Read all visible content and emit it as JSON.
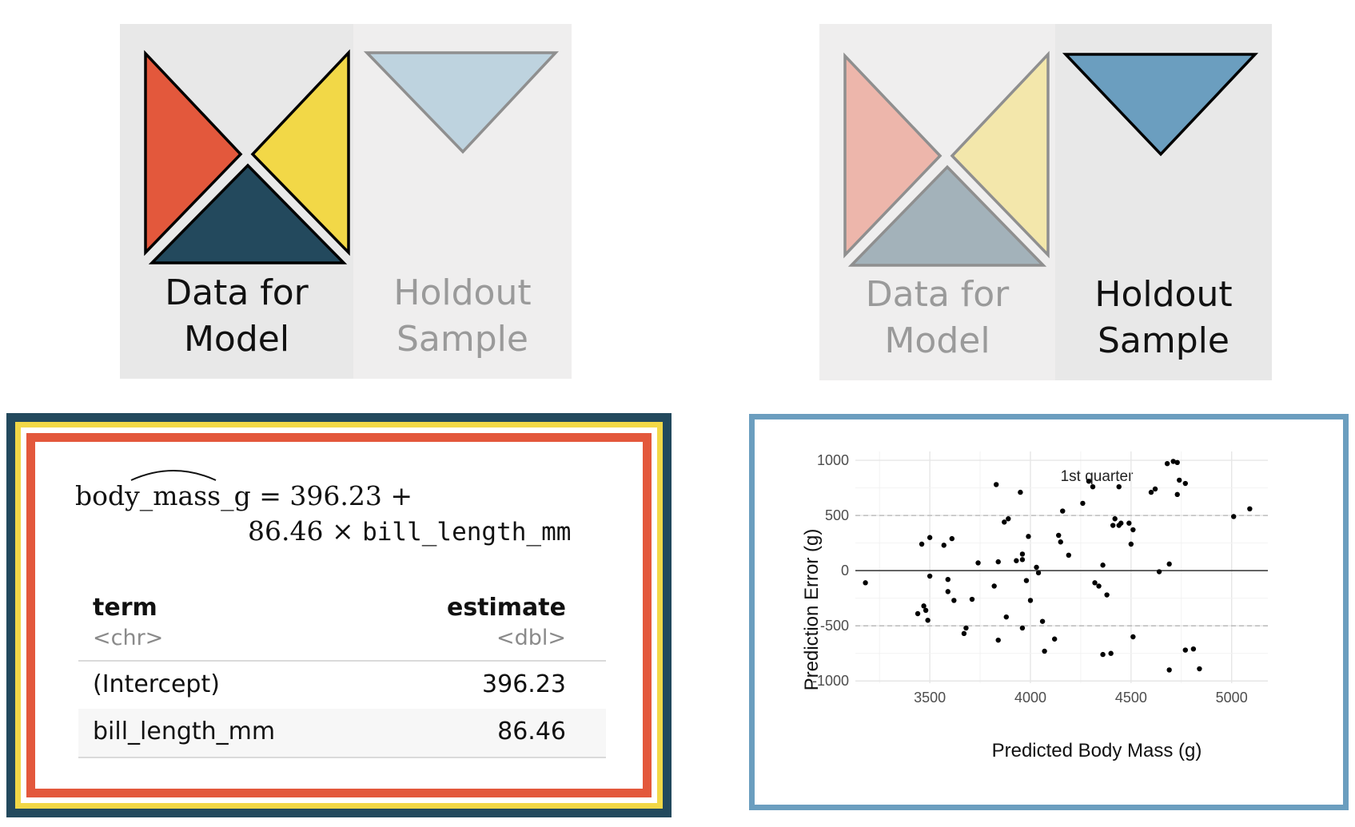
{
  "panels": {
    "left": {
      "model_label": [
        "Data for",
        "Model"
      ],
      "holdout_label": [
        "Holdout",
        "Sample"
      ]
    },
    "right": {
      "model_label": [
        "Data for",
        "Model"
      ],
      "holdout_label": [
        "Holdout",
        "Sample"
      ]
    }
  },
  "colors": {
    "red": "#e3583c",
    "yellow": "#f2d847",
    "navy": "#23495d",
    "light_blue": "#bed3df",
    "blue": "#6b9ebf",
    "faded_red": "#edb6ab",
    "faded_yellow": "#f3e7ab",
    "faded_navy": "#a3b2ba"
  },
  "model": {
    "equation_lhs": "body_mass_g",
    "equation_eq": " = 396.23 +",
    "equation_coef": "86.46 × ",
    "equation_var": "bill_length_mm",
    "table": {
      "headers": [
        "term",
        "estimate"
      ],
      "types": [
        "<chr>",
        "<dbl>"
      ],
      "rows": [
        [
          "(Intercept)",
          "396.23"
        ],
        [
          "bill_length_mm",
          "86.46"
        ]
      ]
    }
  },
  "chart_data": {
    "type": "scatter",
    "title": "1st quarter",
    "xlabel": "Predicted Body Mass (g)",
    "ylabel": "Prediction Error (g)",
    "xlim": [
      3130,
      5180
    ],
    "ylim": [
      -1020,
      1080
    ],
    "x_ticks": [
      "3500",
      "4000",
      "4500",
      "5000"
    ],
    "y_ticks": [
      "1000",
      "500",
      "0",
      "-500",
      "-1000"
    ],
    "grid": true,
    "reference_lines": [
      {
        "y": 0,
        "style": "solid"
      },
      {
        "y": 500,
        "style": "dashed"
      },
      {
        "y": -500,
        "style": "dashed"
      }
    ],
    "points": [
      [
        3180,
        -110
      ],
      [
        3440,
        -390
      ],
      [
        3460,
        240
      ],
      [
        3470,
        -320
      ],
      [
        3480,
        -360
      ],
      [
        3490,
        -450
      ],
      [
        3500,
        300
      ],
      [
        3500,
        -50
      ],
      [
        3570,
        230
      ],
      [
        3590,
        -80
      ],
      [
        3590,
        -190
      ],
      [
        3610,
        290
      ],
      [
        3620,
        -270
      ],
      [
        3670,
        -570
      ],
      [
        3680,
        -520
      ],
      [
        3710,
        -260
      ],
      [
        3740,
        70
      ],
      [
        3820,
        -140
      ],
      [
        3830,
        780
      ],
      [
        3840,
        80
      ],
      [
        3840,
        -630
      ],
      [
        3870,
        440
      ],
      [
        3880,
        -420
      ],
      [
        3890,
        470
      ],
      [
        3930,
        90
      ],
      [
        3950,
        710
      ],
      [
        3960,
        150
      ],
      [
        3960,
        -520
      ],
      [
        3960,
        100
      ],
      [
        3980,
        -90
      ],
      [
        3990,
        310
      ],
      [
        4000,
        -270
      ],
      [
        4030,
        30
      ],
      [
        4040,
        -20
      ],
      [
        4060,
        -460
      ],
      [
        4070,
        -730
      ],
      [
        4120,
        -620
      ],
      [
        4140,
        320
      ],
      [
        4150,
        260
      ],
      [
        4160,
        540
      ],
      [
        4190,
        140
      ],
      [
        4260,
        610
      ],
      [
        4290,
        810
      ],
      [
        4310,
        760
      ],
      [
        4320,
        -110
      ],
      [
        4340,
        -140
      ],
      [
        4360,
        -760
      ],
      [
        4360,
        50
      ],
      [
        4380,
        -220
      ],
      [
        4400,
        -750
      ],
      [
        4410,
        410
      ],
      [
        4420,
        470
      ],
      [
        4440,
        760
      ],
      [
        4440,
        410
      ],
      [
        4450,
        430
      ],
      [
        4490,
        430
      ],
      [
        4500,
        240
      ],
      [
        4510,
        -600
      ],
      [
        4510,
        370
      ],
      [
        4600,
        710
      ],
      [
        4620,
        740
      ],
      [
        4640,
        -10
      ],
      [
        4680,
        970
      ],
      [
        4690,
        60
      ],
      [
        4690,
        -900
      ],
      [
        4710,
        990
      ],
      [
        4730,
        980
      ],
      [
        4730,
        690
      ],
      [
        4740,
        820
      ],
      [
        4770,
        790
      ],
      [
        4770,
        -720
      ],
      [
        4810,
        -710
      ],
      [
        4840,
        -890
      ],
      [
        5010,
        490
      ],
      [
        5090,
        560
      ]
    ]
  }
}
